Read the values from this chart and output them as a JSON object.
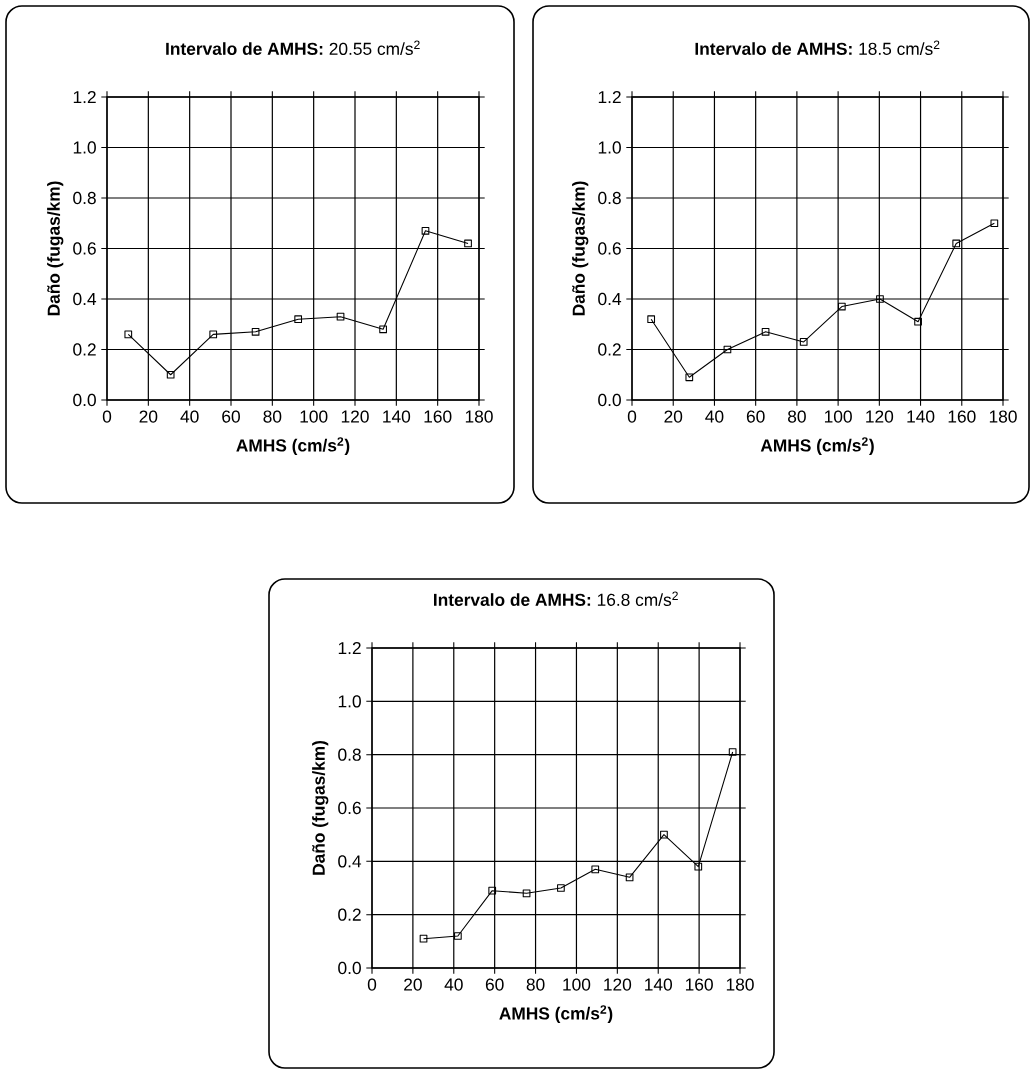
{
  "chart_data": [
    {
      "type": "line",
      "title": "**Intervalo de AMHS:** 20.55 cm/s$^{2}$",
      "xlabel": "AMHS (cm/s$^{2}$)",
      "ylabel": "Daño (fugas/km)",
      "x": [
        10.3,
        30.8,
        51.4,
        71.9,
        92.5,
        113.0,
        133.6,
        154.1,
        174.7
      ],
      "series": [
        {
          "color": "#000000",
          "values": [
            0.26,
            0.1,
            0.26,
            0.27,
            0.32,
            0.33,
            0.28,
            0.67,
            0.62
          ]
        }
      ],
      "xlim": [
        0,
        180
      ],
      "xticks": [
        0,
        20,
        40,
        60,
        80,
        100,
        120,
        140,
        160,
        180
      ],
      "ylim": [
        0,
        1.2
      ],
      "yticks": [
        {
          "value": 0,
          "label": "0.0"
        },
        {
          "value": 0.2,
          "label": "0.2"
        },
        {
          "value": 0.4,
          "label": "0.4"
        },
        {
          "value": 0.6,
          "label": "0.6"
        },
        {
          "value": 0.8,
          "label": "0.8"
        },
        {
          "value": 1.0,
          "label": "1.0"
        },
        {
          "value": 1.2,
          "label": "1.2"
        }
      ],
      "grid": true,
      "marker": "square"
    },
    {
      "type": "line",
      "title": "**Intervalo de AMHS:** 18.5 cm/s$^{2}$",
      "xlabel": "AMHS (cm/s$^{2}$)",
      "ylabel": "Daño (fugas/km)",
      "x": [
        9.3,
        27.8,
        46.3,
        64.8,
        83.3,
        101.8,
        120.3,
        138.8,
        157.3,
        175.8
      ],
      "series": [
        {
          "color": "#000000",
          "values": [
            0.32,
            0.09,
            0.2,
            0.27,
            0.23,
            0.37,
            0.4,
            0.31,
            0.62,
            0.7
          ]
        }
      ],
      "xlim": [
        0,
        180
      ],
      "xticks": [
        0,
        20,
        40,
        60,
        80,
        100,
        120,
        140,
        160,
        180
      ],
      "ylim": [
        0,
        1.2
      ],
      "yticks": [
        {
          "value": 0,
          "label": "0.0"
        },
        {
          "value": 0.2,
          "label": "0.2"
        },
        {
          "value": 0.4,
          "label": "0.4"
        },
        {
          "value": 0.6,
          "label": "0.6"
        },
        {
          "value": 0.8,
          "label": "0.8"
        },
        {
          "value": 1.0,
          "label": "1.0"
        },
        {
          "value": 1.2,
          "label": "1.2"
        }
      ],
      "grid": true,
      "marker": "square"
    },
    {
      "type": "line",
      "title": "**Intervalo de AMHS:** 16.8 cm/s$^{2}$",
      "xlabel": "AMHS (cm/s$^{2}$)",
      "ylabel": "Daño (fugas/km)",
      "x": [
        25.2,
        42.0,
        58.8,
        75.6,
        92.4,
        109.2,
        126.0,
        142.8,
        159.6,
        176.4
      ],
      "series": [
        {
          "color": "#000000",
          "values": [
            0.11,
            0.12,
            0.29,
            0.28,
            0.3,
            0.37,
            0.34,
            0.5,
            0.38,
            0.81
          ]
        }
      ],
      "xlim": [
        0,
        180
      ],
      "xticks": [
        0,
        20,
        40,
        60,
        80,
        100,
        120,
        140,
        160,
        180
      ],
      "ylim": [
        0,
        1.2
      ],
      "yticks": [
        {
          "value": 0,
          "label": "0.0"
        },
        {
          "value": 0.2,
          "label": "0.2"
        },
        {
          "value": 0.4,
          "label": "0.4"
        },
        {
          "value": 0.6,
          "label": "0.6"
        },
        {
          "value": 0.8,
          "label": "0.8"
        },
        {
          "value": 1.0,
          "label": "1.0"
        },
        {
          "value": 1.2,
          "label": "1.2"
        }
      ],
      "grid": true,
      "marker": "square"
    }
  ]
}
